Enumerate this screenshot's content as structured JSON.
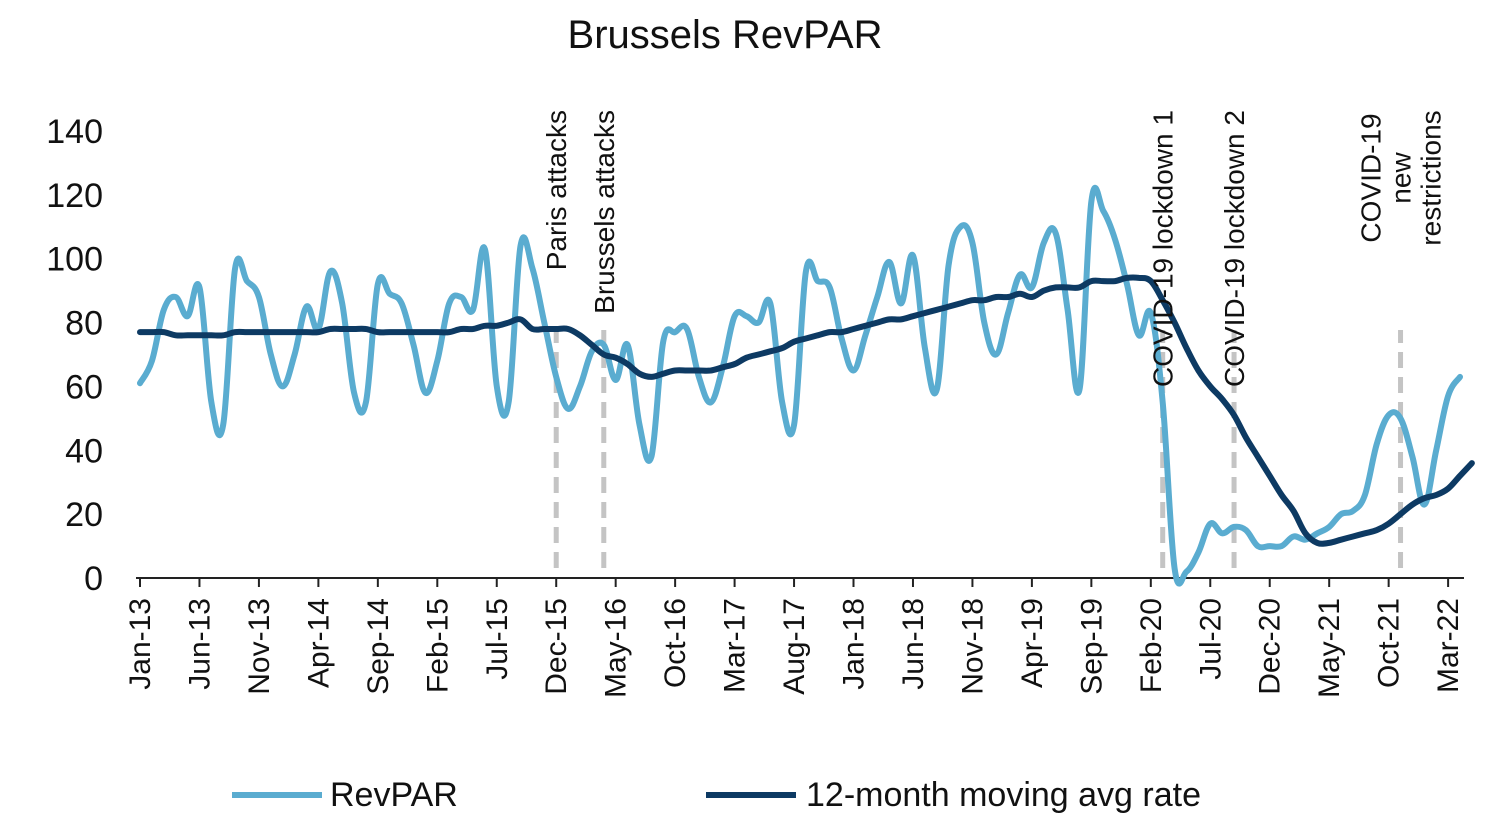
{
  "chart_data": {
    "type": "line",
    "title": "Brussels RevPAR",
    "xlabel": "",
    "ylabel": "",
    "ylim": [
      0,
      140
    ],
    "yticks": [
      "0",
      "20",
      "40",
      "60",
      "80",
      "100",
      "120",
      "140"
    ],
    "x_tick_labels": [
      "Jan-13",
      "Jun-13",
      "Nov-13",
      "Apr-14",
      "Sep-14",
      "Feb-15",
      "Jul-15",
      "Dec-15",
      "May-16",
      "Oct-16",
      "Mar-17",
      "Aug-17",
      "Jan-18",
      "Jun-18",
      "Nov-18",
      "Apr-19",
      "Sep-19",
      "Feb-20",
      "Jul-20",
      "Dec-20",
      "May-21",
      "Oct-21",
      "Mar-22"
    ],
    "x_start": "Jan-13",
    "grid": false,
    "legend_position": "bottom",
    "series": [
      {
        "name": "RevPAR",
        "color": "#5aacd0",
        "values": [
          61,
          68,
          84,
          88,
          82,
          91,
          55,
          48,
          97,
          93,
          88,
          70,
          60,
          70,
          85,
          78,
          96,
          86,
          58,
          55,
          92,
          89,
          86,
          73,
          58,
          68,
          86,
          88,
          84,
          103,
          60,
          55,
          104,
          97,
          80,
          63,
          53,
          60,
          71,
          73,
          62,
          73,
          48,
          38,
          74,
          77,
          78,
          63,
          55,
          66,
          82,
          82,
          80,
          86,
          55,
          48,
          96,
          93,
          91,
          75,
          65,
          76,
          88,
          99,
          86,
          101,
          72,
          59,
          98,
          110,
          105,
          80,
          70,
          83,
          95,
          91,
          105,
          108,
          84,
          59,
          118,
          115,
          106,
          92,
          76,
          83,
          55,
          3,
          2,
          8,
          17,
          14,
          16,
          15,
          10,
          10,
          10,
          13,
          12,
          14,
          16,
          20,
          21,
          26,
          42,
          51,
          50,
          38,
          23,
          40,
          57,
          63
        ]
      },
      {
        "name": "12-month moving avg rate",
        "color": "#0d3a63",
        "values": [
          77,
          77,
          77,
          76,
          76,
          76,
          76,
          76,
          77,
          77,
          77,
          77,
          77,
          77,
          77,
          77,
          78,
          78,
          78,
          78,
          77,
          77,
          77,
          77,
          77,
          77,
          77,
          78,
          78,
          79,
          79,
          80,
          81,
          78,
          78,
          78,
          78,
          76,
          73,
          70,
          69,
          67,
          64,
          63,
          64,
          65,
          65,
          65,
          65,
          66,
          67,
          69,
          70,
          71,
          72,
          74,
          75,
          76,
          77,
          77,
          78,
          79,
          80,
          81,
          81,
          82,
          83,
          84,
          85,
          86,
          87,
          87,
          88,
          88,
          89,
          88,
          90,
          91,
          91,
          91,
          93,
          93,
          93,
          94,
          94,
          93,
          87,
          80,
          72,
          65,
          60,
          56,
          51,
          44,
          38,
          32,
          26,
          21,
          14,
          11,
          11,
          12,
          13,
          14,
          15,
          17,
          20,
          23,
          25,
          26,
          28,
          32,
          36
        ]
      }
    ],
    "annotations": [
      {
        "label": [
          "Paris attacks"
        ],
        "x_index": 35
      },
      {
        "label": [
          "Brussels attacks"
        ],
        "x_index": 39
      },
      {
        "label": [
          "COVID-19 lockdown 1"
        ],
        "x_index": 86
      },
      {
        "label": [
          "COVID-19 lockdown 2"
        ],
        "x_index": 92
      },
      {
        "label": [
          "COVID-19",
          "new",
          "restrictions"
        ],
        "x_index": 106
      }
    ]
  }
}
